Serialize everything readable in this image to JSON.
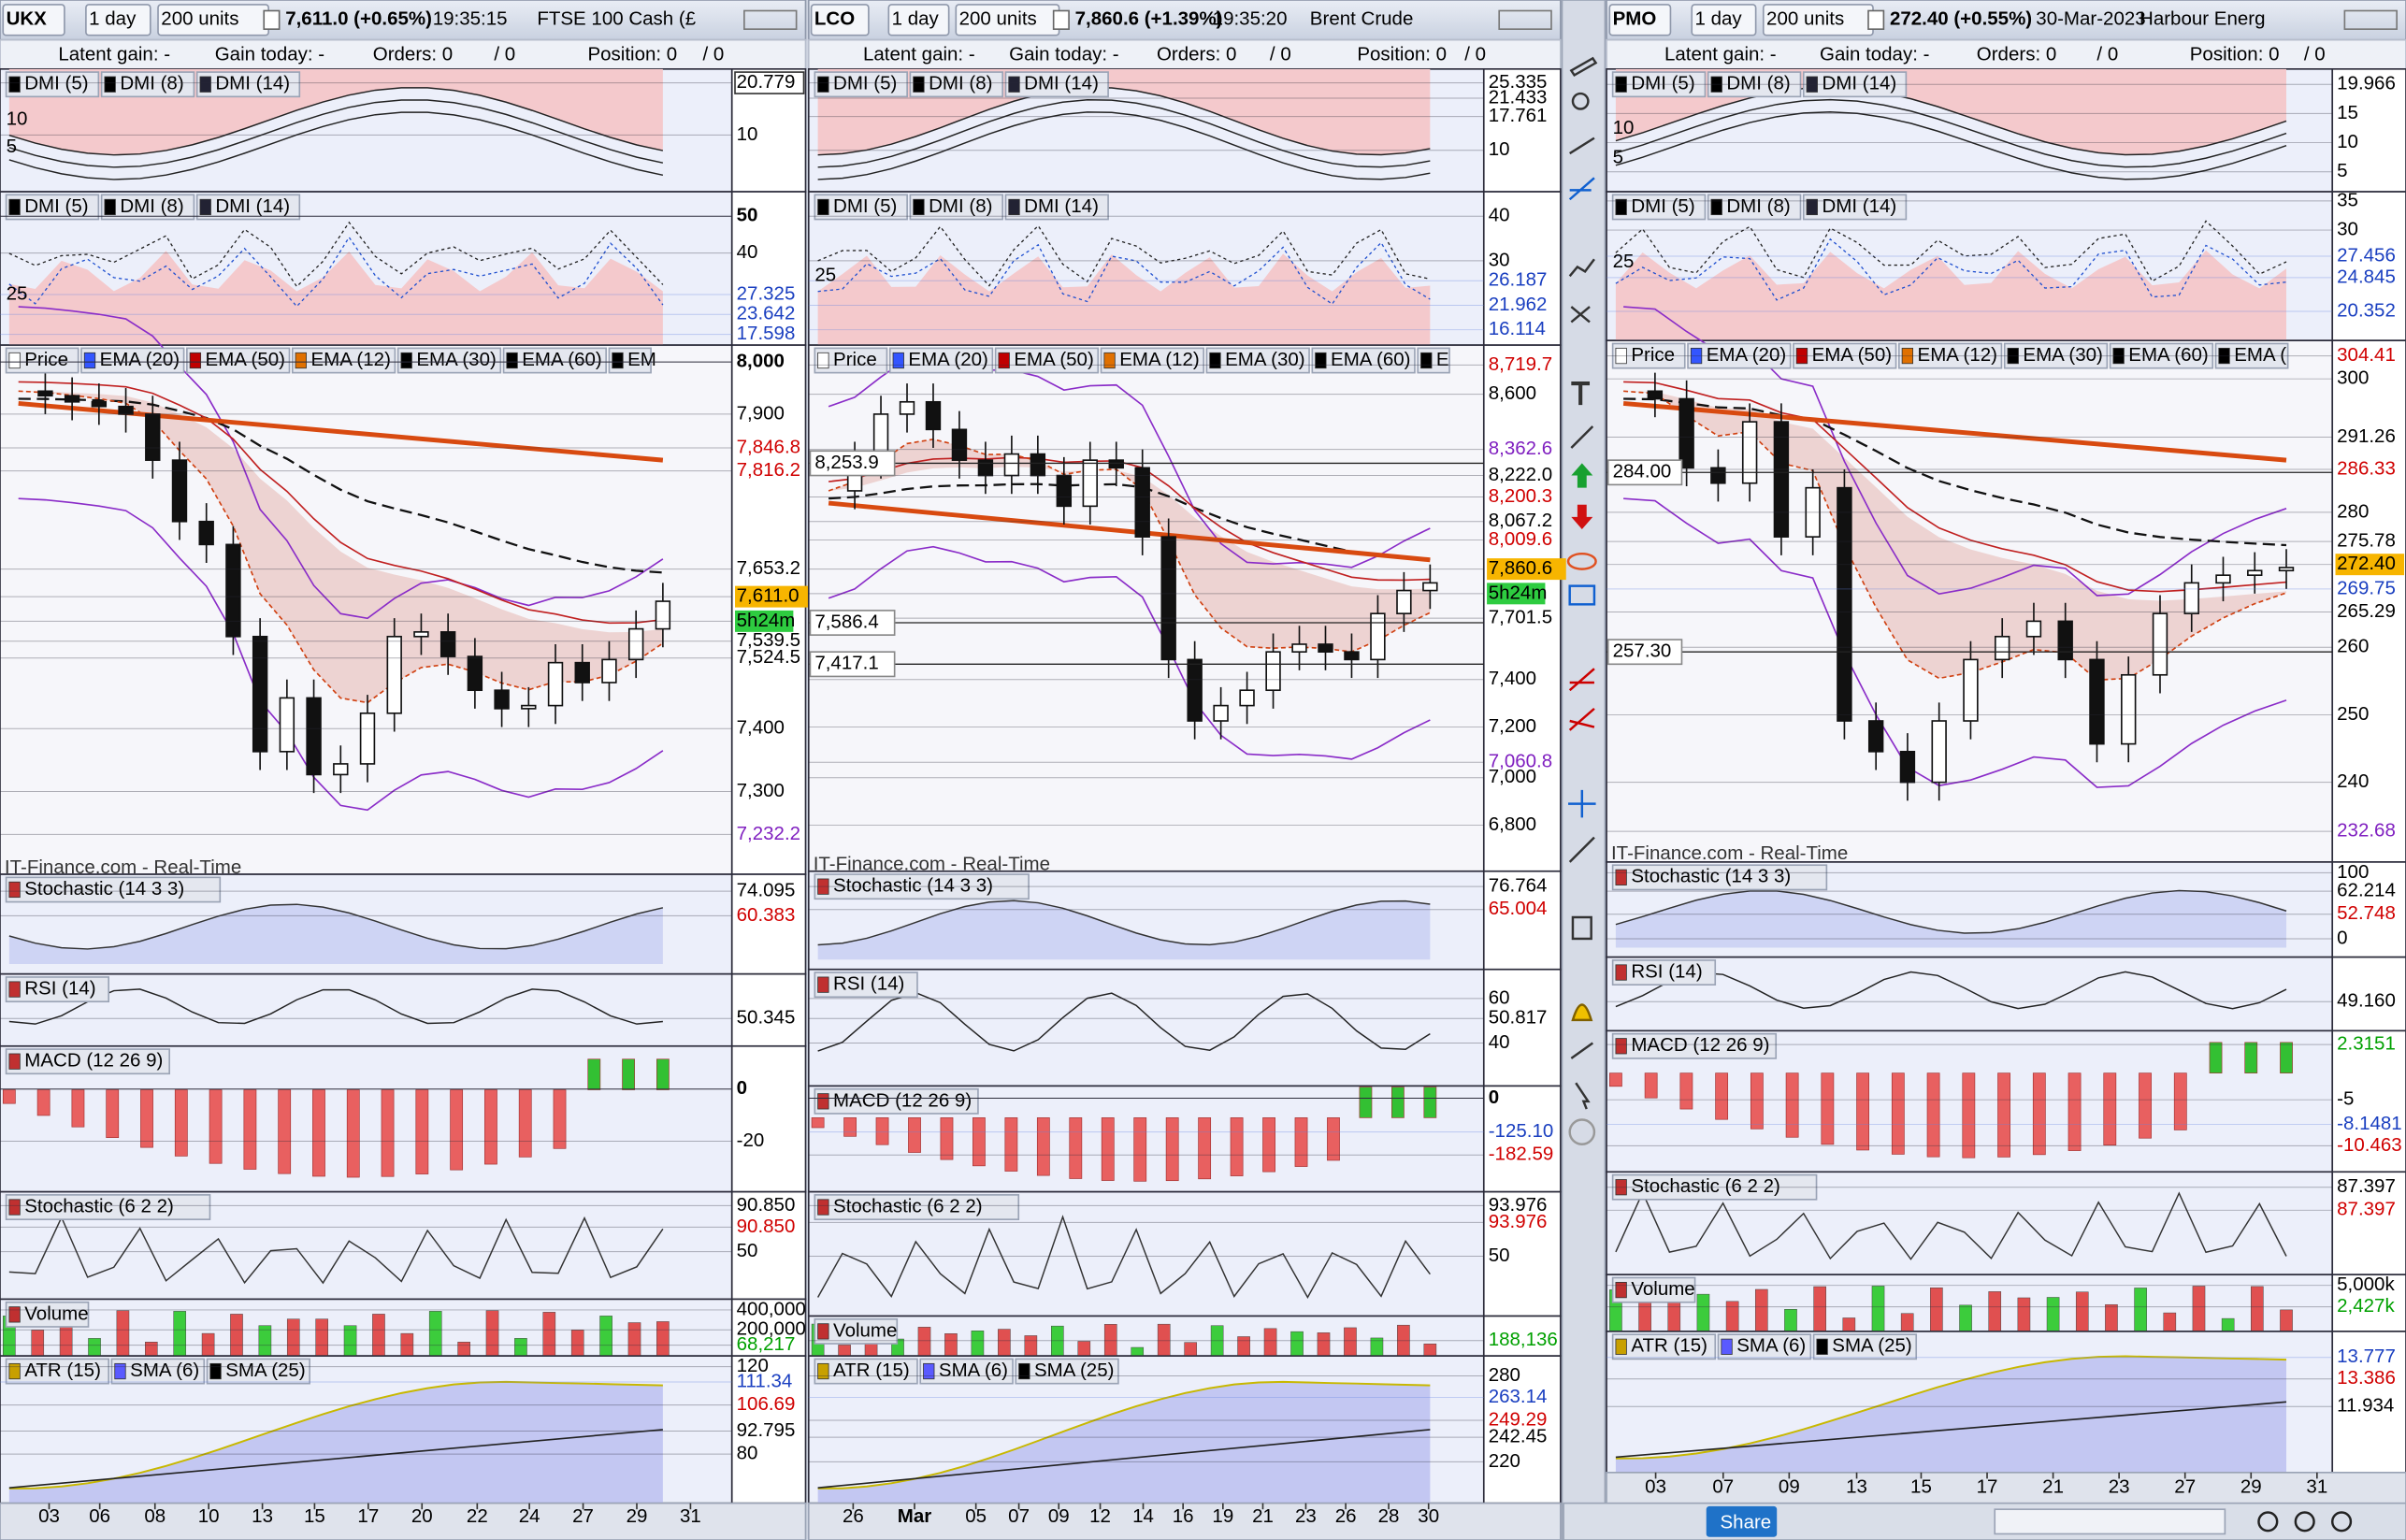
{
  "panels": [
    {
      "header": {
        "symbol": "UKX",
        "timeframe": "1 day",
        "units": "200 units",
        "quote": "7,611.0 (+0.65%)",
        "time": "19:35:15",
        "name": "FTSE 100 Cash (£"
      },
      "info": {
        "latent_gain": "Latent gain: -",
        "gain_today": "Gain today: -",
        "orders": "Orders: 0",
        "orders_pending": "/ 0",
        "position": "Position: 0",
        "position_pending": "/ 0"
      },
      "indicators": [
        {
          "labels": [
            "DMI (5)",
            "DMI (8)",
            "DMI (14)"
          ],
          "axis": [
            "20.779",
            "10"
          ],
          "inner": [
            "10",
            "5"
          ]
        },
        {
          "labels": [
            "DMI (5)",
            "DMI (8)",
            "DMI (14)"
          ],
          "axis": [
            "50",
            "40",
            "27.325",
            "23.642",
            "17.598"
          ],
          "inner": [
            "25"
          ]
        },
        {
          "labels": [
            "Price",
            "EMA (20)",
            "EMA (50)",
            "EMA (12)",
            "EMA (30)",
            "EMA (60)",
            "EM"
          ],
          "axis": [
            "8,000",
            "7,900",
            "7,846.8",
            "7,816.2",
            "7,653.2",
            "7,611.0",
            "5h24m",
            "7,539.5",
            "7,524.5",
            "7,400",
            "7,300",
            "7,232.2"
          ]
        },
        {
          "labels": [
            "Stochastic (14 3 3)"
          ],
          "axis": [
            "74.095",
            "60.383"
          ]
        },
        {
          "labels": [
            "RSI (14)"
          ],
          "axis": [
            "50.345"
          ]
        },
        {
          "labels": [
            "MACD (12 26 9)"
          ],
          "axis": [
            "0",
            "-20"
          ]
        },
        {
          "labels": [
            "Stochastic (6 2 2)"
          ],
          "axis": [
            "90.850",
            "90.850",
            "50"
          ]
        },
        {
          "labels": [
            "Volume"
          ],
          "axis": [
            "400,000",
            "200,000",
            "68,217"
          ]
        },
        {
          "labels": [
            "ATR (15)",
            "SMA (6)",
            "SMA (25)"
          ],
          "axis": [
            "120",
            "111.34",
            "106.69",
            "92.795",
            "80"
          ]
        }
      ],
      "price_levels": [],
      "source": "IT-Finance.com - Real-Time",
      "dates": [
        "03",
        "06",
        "08",
        "10",
        "13",
        "15",
        "17",
        "20",
        "22",
        "24",
        "27",
        "29",
        "31"
      ]
    },
    {
      "header": {
        "symbol": "LCO",
        "timeframe": "1 day",
        "units": "200 units",
        "quote": "7,860.6 (+1.39%)",
        "time": "19:35:20",
        "name": "Brent Crude"
      },
      "info": {
        "latent_gain": "Latent gain: -",
        "gain_today": "Gain today: -",
        "orders": "Orders: 0",
        "orders_pending": "/ 0",
        "position": "Position: 0",
        "position_pending": "/ 0"
      },
      "indicators": [
        {
          "labels": [
            "DMI (5)",
            "DMI (8)",
            "DMI (14)"
          ],
          "axis": [
            "25.335",
            "21.433",
            "17.761",
            "10"
          ]
        },
        {
          "labels": [
            "DMI (5)",
            "DMI (8)",
            "DMI (14)"
          ],
          "axis": [
            "40",
            "30",
            "26.187",
            "21.962",
            "16.114"
          ],
          "inner": [
            "25"
          ]
        },
        {
          "labels": [
            "Price",
            "EMA (20)",
            "EMA (50)",
            "EMA (12)",
            "EMA (30)",
            "EMA (60)",
            "E"
          ],
          "axis": [
            "8,719.7",
            "8,600",
            "8,362.6",
            "8,222.0",
            "8,200.3",
            "8,067.2",
            "8,009.6",
            "7,860.6",
            "5h24m",
            "7,701.5",
            "7,400",
            "7,200",
            "7,060.8",
            "7,000",
            "6,800"
          ]
        },
        {
          "labels": [
            "Stochastic (14 3 3)"
          ],
          "axis": [
            "76.764",
            "65.004"
          ]
        },
        {
          "labels": [
            "RSI (14)"
          ],
          "axis": [
            "60",
            "50.817",
            "40"
          ]
        },
        {
          "labels": [
            "MACD (12 26 9)"
          ],
          "axis": [
            "0",
            "-125.10",
            "-182.59"
          ]
        },
        {
          "labels": [
            "Stochastic (6 2 2)"
          ],
          "axis": [
            "93.976",
            "93.976",
            "50"
          ]
        },
        {
          "labels": [
            "Volume"
          ],
          "axis": [
            "188,136"
          ]
        },
        {
          "labels": [
            "ATR (15)",
            "SMA (6)",
            "SMA (25)"
          ],
          "axis": [
            "280",
            "263.14",
            "249.29",
            "242.45",
            "220"
          ]
        }
      ],
      "price_levels": [
        "8,253.9",
        "7,586.4",
        "7,417.1"
      ],
      "source": "IT-Finance.com - Real-Time",
      "dates": [
        "26",
        "Mar",
        "05",
        "07",
        "09",
        "12",
        "14",
        "16",
        "19",
        "21",
        "23",
        "26",
        "28",
        "30"
      ]
    },
    {
      "header": {
        "symbol": "PMO",
        "timeframe": "1 day",
        "units": "200 units",
        "quote": "272.40 (+0.55%)",
        "time": "30-Mar-2023",
        "name": "Harbour Energ"
      },
      "info": {
        "latent_gain": "Latent gain: -",
        "gain_today": "Gain today: -",
        "orders": "Orders: 0",
        "orders_pending": "/ 0",
        "position": "Position: 0",
        "position_pending": "/ 0"
      },
      "indicators": [
        {
          "labels": [
            "DMI (5)",
            "DMI (8)",
            "DMI (14)"
          ],
          "axis": [
            "19.966",
            "15",
            "10",
            "5"
          ],
          "inner": [
            "10",
            "5"
          ]
        },
        {
          "labels": [
            "DMI (5)",
            "DMI (8)",
            "DMI (14)"
          ],
          "axis": [
            "35",
            "30",
            "27.456",
            "24.845",
            "20.352"
          ],
          "inner": [
            "25"
          ]
        },
        {
          "labels": [
            "Price",
            "EMA (20)",
            "EMA (50)",
            "EMA (12)",
            "EMA (30)",
            "EMA (60)",
            "EMA ("
          ],
          "axis": [
            "304.41",
            "300",
            "291.26",
            "286.33",
            "280",
            "275.78",
            "272.40",
            "269.75",
            "265.29",
            "260",
            "250",
            "240",
            "232.68"
          ]
        },
        {
          "labels": [
            "Stochastic (14 3 3)"
          ],
          "axis": [
            "100",
            "62.214",
            "52.748",
            "0"
          ]
        },
        {
          "labels": [
            "RSI (14)"
          ],
          "axis": [
            "49.160"
          ]
        },
        {
          "labels": [
            "MACD (12 26 9)"
          ],
          "axis": [
            "2.3151",
            "-5",
            "-8.1481",
            "-10.463"
          ]
        },
        {
          "labels": [
            "Stochastic (6 2 2)"
          ],
          "axis": [
            "87.397",
            "87.397"
          ]
        },
        {
          "labels": [
            "Volume"
          ],
          "axis": [
            "5,000k",
            "2,427k"
          ]
        },
        {
          "labels": [
            "ATR (15)",
            "SMA (6)",
            "SMA (25)"
          ],
          "axis": [
            "13.777",
            "13.386",
            "11.934"
          ]
        }
      ],
      "price_levels": [
        "284.00",
        "257.30"
      ],
      "source": "IT-Finance.com - Real-Time",
      "dates": [
        "03",
        "07",
        "09",
        "13",
        "15",
        "17",
        "21",
        "23",
        "27",
        "29",
        "31"
      ]
    }
  ],
  "toolbar": {
    "share": "Share"
  }
}
